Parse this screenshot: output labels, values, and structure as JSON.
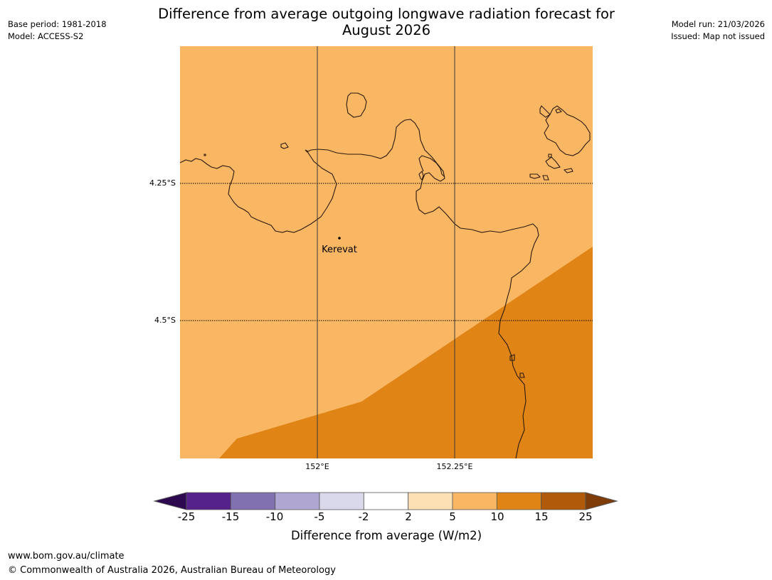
{
  "header": {
    "title_line1": "Difference from average outgoing longwave radiation forecast for",
    "title_line2": "August 2026",
    "base_period": "Base period: 1981-2018",
    "model": "Model: ACCESS-S2",
    "model_run": "Model run: 21/03/2026",
    "issued": "Issued: Map not issued"
  },
  "map": {
    "lat_labels": [
      "4.25°S",
      "4.5°S"
    ],
    "lon_labels": [
      "152°E",
      "152.25°E"
    ],
    "place": "Kerevat",
    "colors": {
      "band_5_10": "#f9b764",
      "band_10_15": "#e08416",
      "coast": "#2a1a0e",
      "grid": "#3a3a3a"
    }
  },
  "colorbar": {
    "title": "Difference from average (W/m2)",
    "ticks": [
      "-25",
      "-15",
      "-10",
      "-5",
      "-2",
      "2",
      "5",
      "10",
      "15",
      "25"
    ],
    "colors": [
      "#54228a",
      "#8271b0",
      "#b0a6d2",
      "#d9d9eb",
      "#ffffff",
      "#fee0b5",
      "#f9b764",
      "#e08416",
      "#b15a09"
    ],
    "extend_low": "#2d0a4f",
    "extend_high": "#7f3b08"
  },
  "footer": {
    "url": "www.bom.gov.au/climate",
    "copyright": "© Commonwealth of Australia 2026, Australian Bureau of Meteorology"
  }
}
